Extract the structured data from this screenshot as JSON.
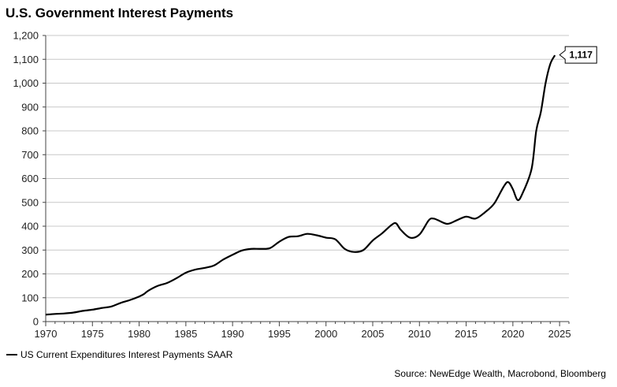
{
  "title": "U.S. Government Interest Payments",
  "legend": {
    "series_label": "US Current Expenditures Interest Payments SAAR"
  },
  "source": "Source: NewEdge Wealth, Macrobond, Bloomberg",
  "end_label": "1,117",
  "colors": {
    "line": "#000000",
    "grid": "#c8c8c8",
    "axis": "#444444"
  },
  "chart_data": {
    "type": "line",
    "title": "U.S. Government Interest Payments",
    "xlabel": "",
    "ylabel": "",
    "xlim": [
      1970,
      2026
    ],
    "ylim": [
      0,
      1200
    ],
    "grid": true,
    "legend_position": "bottom-left",
    "x_ticks": [
      1970,
      1975,
      1980,
      1985,
      1990,
      1995,
      2000,
      2005,
      2010,
      2015,
      2020,
      2025
    ],
    "y_ticks": [
      0,
      100,
      200,
      300,
      400,
      500,
      600,
      700,
      800,
      900,
      1000,
      1100,
      1200
    ],
    "y_tick_labels": [
      "0",
      "100",
      "200",
      "300",
      "400",
      "500",
      "600",
      "700",
      "800",
      "900",
      "1,000",
      "1,100",
      "1,200"
    ],
    "series": [
      {
        "name": "US Current Expenditures Interest Payments SAAR",
        "x": [
          1970,
          1971,
          1972,
          1973,
          1974,
          1975,
          1976,
          1977,
          1978,
          1979,
          1980,
          1980.5,
          1981,
          1982,
          1983,
          1984,
          1985,
          1986,
          1987,
          1988,
          1989,
          1990,
          1991,
          1992,
          1993,
          1994,
          1995,
          1996,
          1997,
          1998,
          1999,
          2000,
          2001,
          2002,
          2003,
          2004,
          2005,
          2006,
          2007,
          2007.5,
          2008,
          2009,
          2010,
          2011,
          2011.5,
          2012,
          2013,
          2014,
          2015,
          2016,
          2017,
          2018,
          2019,
          2019.5,
          2020,
          2020.5,
          2021,
          2022,
          2022.5,
          2023,
          2023.5,
          2024,
          2024.5
        ],
        "values": [
          29,
          32,
          34,
          38,
          45,
          50,
          57,
          63,
          78,
          90,
          105,
          115,
          130,
          150,
          162,
          182,
          205,
          218,
          225,
          235,
          260,
          280,
          298,
          305,
          305,
          308,
          335,
          355,
          358,
          368,
          362,
          352,
          345,
          305,
          292,
          300,
          340,
          370,
          405,
          412,
          385,
          352,
          365,
          425,
          432,
          425,
          410,
          425,
          440,
          432,
          458,
          495,
          565,
          585,
          555,
          510,
          535,
          640,
          800,
          880,
          1000,
          1080,
          1117
        ]
      }
    ]
  }
}
